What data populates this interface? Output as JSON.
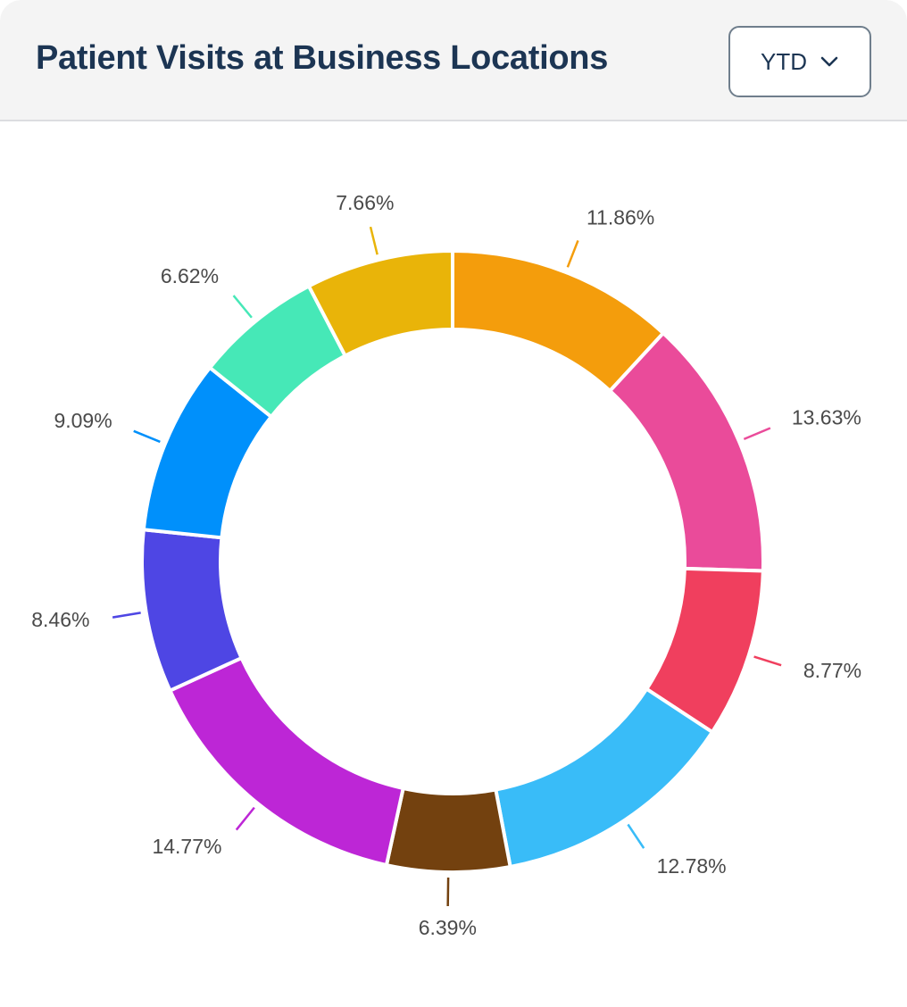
{
  "header": {
    "title": "Patient Visits at Business Locations",
    "period_select": {
      "value": "YTD",
      "icon": "chevron-down-icon"
    }
  },
  "chart_data": {
    "type": "pie",
    "variant": "donut",
    "start_angle_deg": 0,
    "direction": "clockwise",
    "labels": [
      "11.86%",
      "13.63%",
      "8.77%",
      "12.78%",
      "6.39%",
      "14.77%",
      "8.46%",
      "9.09%",
      "6.62%",
      "7.66%"
    ],
    "values": [
      11.86,
      13.63,
      8.77,
      12.78,
      6.39,
      14.77,
      8.46,
      9.09,
      6.62,
      7.66
    ],
    "colors": [
      "#f49d0c",
      "#ea4b9a",
      "#f03f5e",
      "#39bcf8",
      "#73410f",
      "#bd26d6",
      "#4e46e4",
      "#0090fb",
      "#46e8b7",
      "#e9b409"
    ],
    "slice_border": "#ffffff",
    "leader_lines": true
  }
}
